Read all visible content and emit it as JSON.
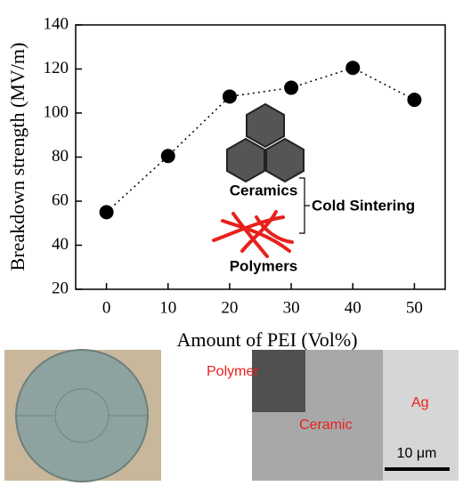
{
  "chart_data": {
    "type": "line",
    "x": [
      0,
      10,
      20,
      30,
      40,
      50
    ],
    "values": [
      55,
      80.5,
      107.5,
      111.5,
      120.5,
      106
    ],
    "color": "#000000",
    "line_style": "dotted",
    "markers": true,
    "xlim": [
      -5,
      55
    ],
    "xticks": [
      0,
      10,
      20,
      30,
      40,
      50
    ],
    "ylim": [
      20,
      140
    ],
    "yticks": [
      20,
      40,
      60,
      80,
      100,
      120,
      140
    ],
    "xlabel": "Amount of PEI (Vol%)",
    "ylabel": "Breakdown strength (MV/m)",
    "annotations": {
      "ceramics": "Ceramics",
      "cold_sintering": "Cold Sintering",
      "polymers": "Polymers"
    }
  },
  "photos": {
    "polymer": "Polymer",
    "ceramic": "Ceramic",
    "ag": "Ag",
    "scale_bar": "10 μm"
  }
}
